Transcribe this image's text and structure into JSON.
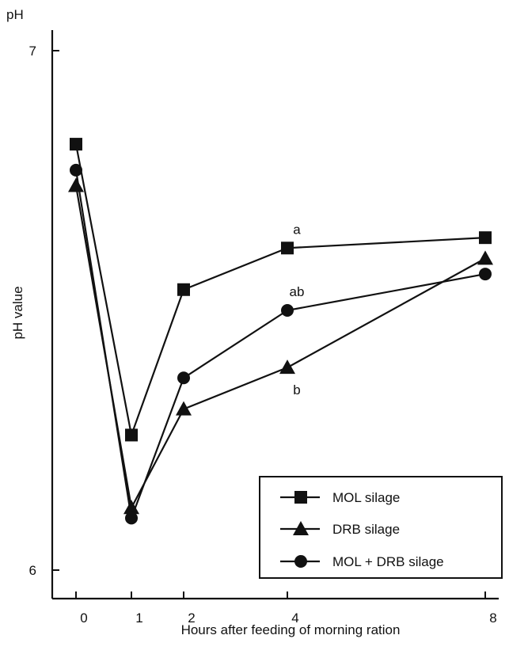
{
  "chart_data": {
    "type": "line",
    "y_unit_label": "pH",
    "ylabel": "pH value",
    "xlabel": "Hours after feeding of morning ration",
    "x": [
      0,
      1,
      2,
      4,
      8
    ],
    "x_tick_labels": [
      "0",
      "1",
      "2",
      "4",
      "8"
    ],
    "ylim": [
      6,
      7
    ],
    "y_ticks": [
      6,
      7
    ],
    "y_tick_labels": [
      "6",
      "7"
    ],
    "grid": false,
    "legend_position": "bottom-right",
    "series": [
      {
        "name": "MOL silage",
        "marker": "square",
        "values": [
          6.82,
          6.26,
          6.54,
          6.62,
          6.64
        ]
      },
      {
        "name": "DRB silage",
        "marker": "triangle",
        "values": [
          6.74,
          6.12,
          6.31,
          6.39,
          6.6
        ]
      },
      {
        "name": "MOL + DRB silage",
        "marker": "circle",
        "values": [
          6.77,
          6.1,
          6.37,
          6.5,
          6.57
        ]
      }
    ],
    "annotations": [
      {
        "text": "a",
        "x": 4,
        "y": 6.62
      },
      {
        "text": "ab",
        "x": 4,
        "y": 6.5
      },
      {
        "text": "b",
        "x": 4,
        "y": 6.39
      }
    ],
    "colors": {
      "line": "#111111",
      "marker": "#111111"
    }
  }
}
